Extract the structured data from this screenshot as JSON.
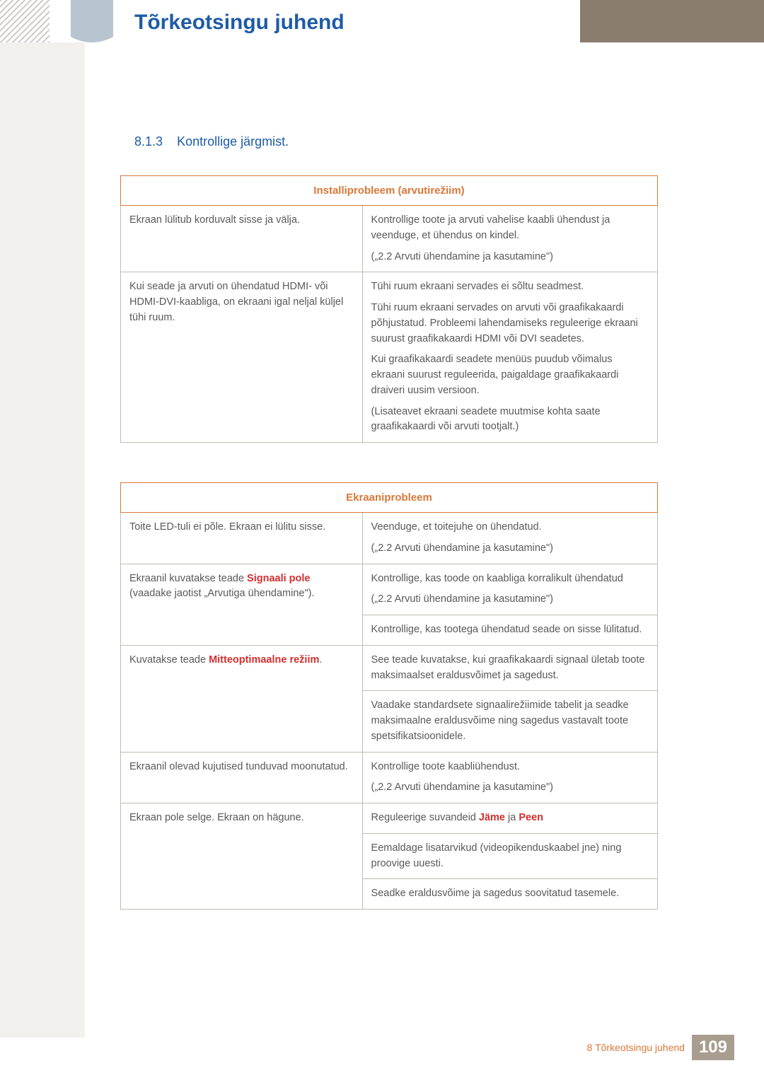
{
  "colors": {
    "title_blue": "#1e5ba8",
    "accent_orange": "#d97838",
    "text_gray": "#595959",
    "highlight_red": "#d42e2e",
    "border_gray": "#c0bbb4",
    "header_brown": "#8a7d6f",
    "stripe_beige": "#f3f1ee",
    "pagenum_bg": "#a89d8f"
  },
  "typography": {
    "title_size": 30,
    "heading_size": 18,
    "body_size": 14.5,
    "th_size": 15
  },
  "main_title": "Tõrkeotsingu juhend",
  "section": {
    "number": "8.1.3",
    "title": "Kontrollige järgmist."
  },
  "table1": {
    "header": "Installiprobleem (arvutirežiim)",
    "rows": [
      {
        "left": "Ekraan lülitub korduvalt sisse ja välja.",
        "right": [
          "Kontrollige toote ja arvuti vahelise kaabli ühendust ja veenduge, et ühendus on kindel.",
          "(„2.2 Arvuti ühendamine ja kasutamine\")"
        ]
      },
      {
        "left": "Kui seade ja arvuti on ühendatud HDMI- või HDMI-DVI-kaabliga, on ekraani igal neljal küljel tühi ruum.",
        "right": [
          "Tühi ruum ekraani servades ei sõltu seadmest.",
          "Tühi ruum ekraani servades on arvuti või graafikakaardi põhjustatud. Probleemi lahendamiseks reguleerige ekraani suurust graafikakaardi HDMI või DVI seadetes.",
          "Kui graafikakaardi seadete menüüs puudub võimalus ekraani suurust reguleerida, paigaldage graafikakaardi draiveri uusim versioon.",
          "(Lisateavet ekraani seadete muutmise kohta saate graafikakaardi või arvuti tootjalt.)"
        ]
      }
    ]
  },
  "table2": {
    "header": "Ekraaniprobleem",
    "rows": [
      {
        "left_plain": "Toite LED-tuli ei põle. Ekraan ei lülitu sisse.",
        "right": [
          "Veenduge, et toitejuhe on ühendatud.",
          "(„2.2 Arvuti ühendamine ja kasutamine\")"
        ]
      },
      {
        "left_prefix": "Ekraanil kuvatakse teade ",
        "left_highlight": "Signaali pole",
        "left_suffix": " (vaadake jaotist „Arvutiga ühendamine\").",
        "right_group1": [
          "Kontrollige, kas toode on kaabliga korralikult ühendatud",
          "(„2.2 Arvuti ühendamine ja kasutamine\")"
        ],
        "right_group2": [
          "Kontrollige, kas tootega ühendatud seade on sisse lülitatud."
        ]
      },
      {
        "left_prefix": "Kuvatakse teade ",
        "left_highlight": "Mitteoptimaalne režiim",
        "left_suffix": ".",
        "right_group1": [
          "See teade kuvatakse, kui graafikakaardi signaal ületab toote maksimaalset eraldusvõimet ja sagedust."
        ],
        "right_group2": [
          "Vaadake standardsete signaalirežiimide tabelit ja seadke maksimaalne eraldusvõime ning sagedus vastavalt toote spetsifikatsioonidele."
        ]
      },
      {
        "left_plain": "Ekraanil olevad kujutised tunduvad moonutatud.",
        "right": [
          "Kontrollige toote kaabliühendust.",
          "(„2.2 Arvuti ühendamine ja kasutamine\")"
        ]
      },
      {
        "left_plain": "Ekraan pole selge. Ekraan on hägune.",
        "right_group1_prefix": "Reguleerige suvandeid ",
        "right_group1_hl1": "Jäme",
        "right_group1_mid": " ja ",
        "right_group1_hl2": "Peen",
        "right_group2": [
          "Eemaldage lisatarvikud (videopikenduskaabel jne) ning proovige uuesti."
        ],
        "right_group3": [
          "Seadke eraldusvõime ja sagedus soovitatud tasemele."
        ]
      }
    ]
  },
  "footer": {
    "text": "8 Tõrkeotsingu juhend",
    "page": "109"
  }
}
